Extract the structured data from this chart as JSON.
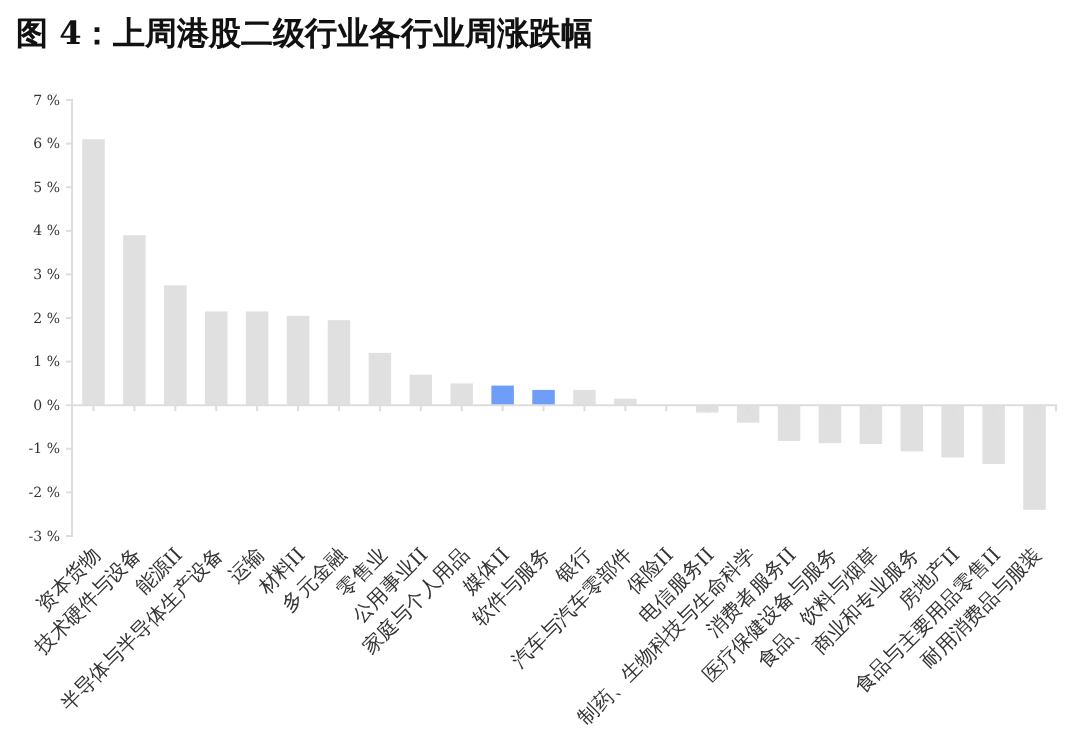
{
  "chart_data": {
    "type": "bar",
    "title": "图 4：上周港股二级行业各行业周涨跌幅",
    "categories": [
      "资本货物",
      "技术硬件与设备",
      "能源II",
      "半导体与半导体生产设备",
      "运输",
      "材料II",
      "多元金融",
      "零售业",
      "公用事业II",
      "家庭与个人用品",
      "媒体II",
      "软件与服务",
      "银行",
      "汽车与汽车零部件",
      "保险II",
      "电信服务II",
      "制药、生物科技与生命科学",
      "消费者服务II",
      "医疗保健设备与服务",
      "食品、饮料与烟草",
      "商业和专业服务",
      "房地产II",
      "食品与主要用品零售II",
      "耐用消费品与服装"
    ],
    "values": [
      6.1,
      3.9,
      2.75,
      2.15,
      2.15,
      2.05,
      1.95,
      1.2,
      0.7,
      0.5,
      0.45,
      0.35,
      0.35,
      0.15,
      0.01,
      -0.17,
      -0.4,
      -0.82,
      -0.87,
      -0.89,
      -1.06,
      -1.2,
      -1.35,
      -2.4
    ],
    "colors": [
      "#e0e0e0",
      "#e0e0e0",
      "#e0e0e0",
      "#e0e0e0",
      "#e0e0e0",
      "#e0e0e0",
      "#e0e0e0",
      "#e0e0e0",
      "#e0e0e0",
      "#e0e0e0",
      "#6f9ef8",
      "#6f9ef8",
      "#e0e0e0",
      "#e0e0e0",
      "#e0e0e0",
      "#e0e0e0",
      "#e0e0e0",
      "#e0e0e0",
      "#e0e0e0",
      "#e0e0e0",
      "#e0e0e0",
      "#e0e0e0",
      "#e0e0e0",
      "#e0e0e0"
    ],
    "ylim": [
      -3,
      7
    ],
    "yticks": [
      {
        "value": -3,
        "label": "-3 %"
      },
      {
        "value": -2,
        "label": "-2 %"
      },
      {
        "value": -1,
        "label": "-1 %"
      },
      {
        "value": 0,
        "label": "0 %"
      },
      {
        "value": 1,
        "label": "1 %"
      },
      {
        "value": 2,
        "label": "2 %"
      },
      {
        "value": 3,
        "label": "3 %"
      },
      {
        "value": 4,
        "label": "4 %"
      },
      {
        "value": 5,
        "label": "5 %"
      },
      {
        "value": 6,
        "label": "6 %"
      },
      {
        "value": 7,
        "label": "7 %"
      }
    ],
    "grid": false
  }
}
